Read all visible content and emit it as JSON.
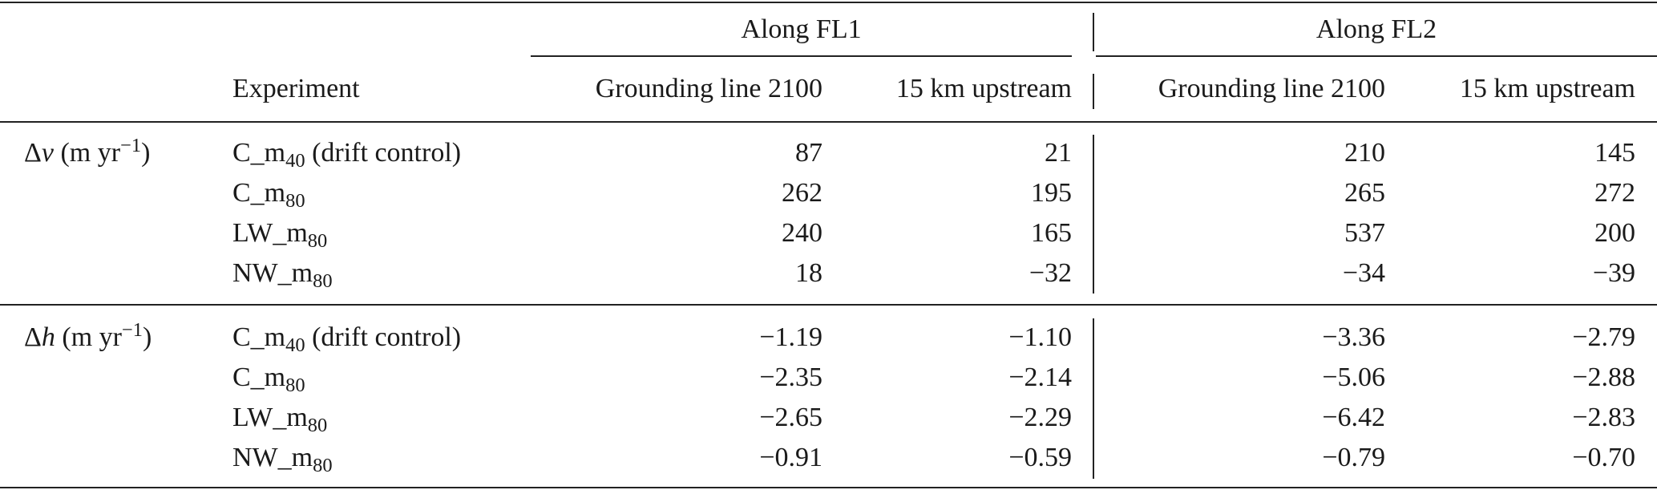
{
  "table": {
    "group_headers": [
      "Along FL1",
      "Along FL2"
    ],
    "experiment_header": "Experiment",
    "sub_headers": [
      "Grounding line 2100",
      "15 km upstream",
      "Grounding line 2100",
      "15 km upstream"
    ],
    "sections": [
      {
        "quantity_symbol": "Δ",
        "quantity_var": "v",
        "unit_prefix": "(m yr",
        "unit_exp": "−1",
        "unit_suffix": ")",
        "rows": [
          {
            "exp_base": "C_m",
            "exp_sub": "40",
            "exp_note": " (drift control)",
            "values": [
              "87",
              "21",
              "210",
              "145"
            ]
          },
          {
            "exp_base": "C_m",
            "exp_sub": "80",
            "exp_note": "",
            "values": [
              "262",
              "195",
              "265",
              "272"
            ]
          },
          {
            "exp_base": "LW_m",
            "exp_sub": "80",
            "exp_note": "",
            "values": [
              "240",
              "165",
              "537",
              "200"
            ]
          },
          {
            "exp_base": "NW_m",
            "exp_sub": "80",
            "exp_note": "",
            "values": [
              "18",
              "−32",
              "−34",
              "−39"
            ]
          }
        ]
      },
      {
        "quantity_symbol": "Δ",
        "quantity_var": "h",
        "unit_prefix": "(m yr",
        "unit_exp": "−1",
        "unit_suffix": ")",
        "rows": [
          {
            "exp_base": "C_m",
            "exp_sub": "40",
            "exp_note": " (drift control)",
            "values": [
              "−1.19",
              "−1.10",
              "−3.36",
              "−2.79"
            ]
          },
          {
            "exp_base": "C_m",
            "exp_sub": "80",
            "exp_note": "",
            "values": [
              "−2.35",
              "−2.14",
              "−5.06",
              "−2.88"
            ]
          },
          {
            "exp_base": "LW_m",
            "exp_sub": "80",
            "exp_note": "",
            "values": [
              "−2.65",
              "−2.29",
              "−6.42",
              "−2.83"
            ]
          },
          {
            "exp_base": "NW_m",
            "exp_sub": "80",
            "exp_note": "",
            "values": [
              "−0.91",
              "−0.59",
              "−0.79",
              "−0.70"
            ]
          }
        ]
      }
    ]
  }
}
